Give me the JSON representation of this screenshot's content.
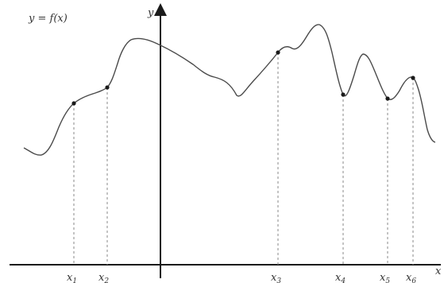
{
  "function_label": "y = f(x)",
  "axes": {
    "x_label": "x",
    "y_label": "y"
  },
  "points": [
    {
      "name": "x",
      "sub": "1"
    },
    {
      "name": "x",
      "sub": "2"
    },
    {
      "name": "x",
      "sub": "3"
    },
    {
      "name": "x",
      "sub": "4"
    },
    {
      "name": "x",
      "sub": "5"
    },
    {
      "name": "x",
      "sub": "6"
    }
  ]
}
